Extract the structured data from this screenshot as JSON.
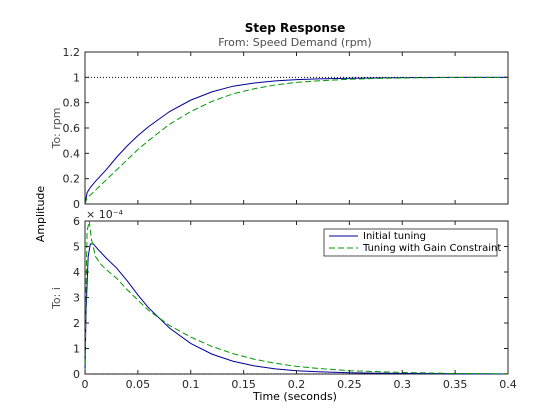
{
  "chart_data": {
    "type": "line",
    "title": "Step Response",
    "subtitle": "From: Speed Demand (rpm)",
    "xlabel": "Time (seconds)",
    "ylabel": "Amplitude",
    "xlim": [
      0,
      0.4
    ],
    "x_ticks": [
      "0",
      "0.05",
      "0.1",
      "0.15",
      "0.2",
      "0.25",
      "0.3",
      "0.35",
      "0.4"
    ],
    "x_tick_values": [
      0,
      0.05,
      0.1,
      0.15,
      0.2,
      0.25,
      0.3,
      0.35,
      0.4
    ],
    "grid": false,
    "legend_position": "top-right of lower plot",
    "colors": {
      "axes": "#262626",
      "initial": "#000099",
      "constraint": "#009900",
      "reference": "#000000"
    },
    "legend": {
      "entries": [
        "Initial tuning",
        "Tuning with Gain Constraint"
      ]
    },
    "subplots": [
      {
        "io_label": "To: rpm",
        "ylim": [
          0,
          1.2
        ],
        "y_ticks": [
          "0",
          "0.2",
          "0.4",
          "0.6",
          "0.8",
          "1",
          "1.2"
        ],
        "y_tick_values": [
          0,
          0.2,
          0.4,
          0.6,
          0.8,
          1,
          1.2
        ],
        "reference_value": 1,
        "series": [
          {
            "name": "Initial tuning",
            "style": "solid",
            "x": [
              0,
              0.002,
              0.005,
              0.01,
              0.02,
              0.03,
              0.04,
              0.05,
              0.06,
              0.08,
              0.1,
              0.12,
              0.14,
              0.16,
              0.18,
              0.2,
              0.22,
              0.25,
              0.28,
              0.3,
              0.35,
              0.4
            ],
            "y": [
              0,
              0.09,
              0.13,
              0.18,
              0.27,
              0.37,
              0.46,
              0.54,
              0.61,
              0.73,
              0.82,
              0.885,
              0.93,
              0.955,
              0.972,
              0.982,
              0.988,
              0.993,
              0.996,
              0.998,
              1.0,
              1.0
            ]
          },
          {
            "name": "Tuning with Gain Constraint",
            "style": "dashed",
            "x": [
              0,
              0.002,
              0.005,
              0.01,
              0.02,
              0.03,
              0.04,
              0.05,
              0.06,
              0.08,
              0.1,
              0.12,
              0.14,
              0.16,
              0.18,
              0.2,
              0.22,
              0.25,
              0.28,
              0.3,
              0.35,
              0.4
            ],
            "y": [
              0,
              0.05,
              0.07,
              0.11,
              0.19,
              0.27,
              0.35,
              0.43,
              0.5,
              0.63,
              0.73,
              0.81,
              0.87,
              0.91,
              0.94,
              0.96,
              0.972,
              0.985,
              0.992,
              0.995,
              0.999,
              1.0
            ]
          }
        ]
      },
      {
        "io_label": "To: i",
        "exponent_label": "× 10⁻⁴",
        "ylim": [
          0,
          6
        ],
        "y_ticks": [
          "0",
          "1",
          "2",
          "3",
          "4",
          "5",
          "6"
        ],
        "y_tick_values": [
          0,
          1,
          2,
          3,
          4,
          5,
          6
        ],
        "reference_value": 0,
        "series": [
          {
            "name": "Initial tuning",
            "style": "solid",
            "x": [
              0,
              0.001,
              0.003,
              0.005,
              0.008,
              0.012,
              0.02,
              0.03,
              0.04,
              0.05,
              0.06,
              0.08,
              0.1,
              0.12,
              0.14,
              0.16,
              0.18,
              0.2,
              0.22,
              0.25,
              0.3,
              0.35,
              0.4
            ],
            "y": [
              0,
              2.5,
              4.6,
              5.1,
              5.1,
              4.9,
              4.55,
              4.15,
              3.65,
              3.1,
              2.6,
              1.8,
              1.2,
              0.78,
              0.5,
              0.32,
              0.2,
              0.13,
              0.09,
              0.05,
              0.02,
              0.01,
              0
            ]
          },
          {
            "name": "Tuning with Gain Constraint",
            "style": "dashed",
            "x": [
              0,
              0.001,
              0.002,
              0.004,
              0.006,
              0.01,
              0.015,
              0.02,
              0.03,
              0.04,
              0.05,
              0.06,
              0.08,
              0.1,
              0.12,
              0.14,
              0.16,
              0.18,
              0.2,
              0.22,
              0.25,
              0.3,
              0.35,
              0.4
            ],
            "y": [
              0,
              3.5,
              5.6,
              6.0,
              5.3,
              4.6,
              4.3,
              4.1,
              3.75,
              3.3,
              2.9,
              2.5,
              1.9,
              1.45,
              1.08,
              0.8,
              0.58,
              0.42,
              0.3,
              0.22,
              0.13,
              0.06,
              0.02,
              0.01
            ]
          }
        ]
      }
    ]
  }
}
